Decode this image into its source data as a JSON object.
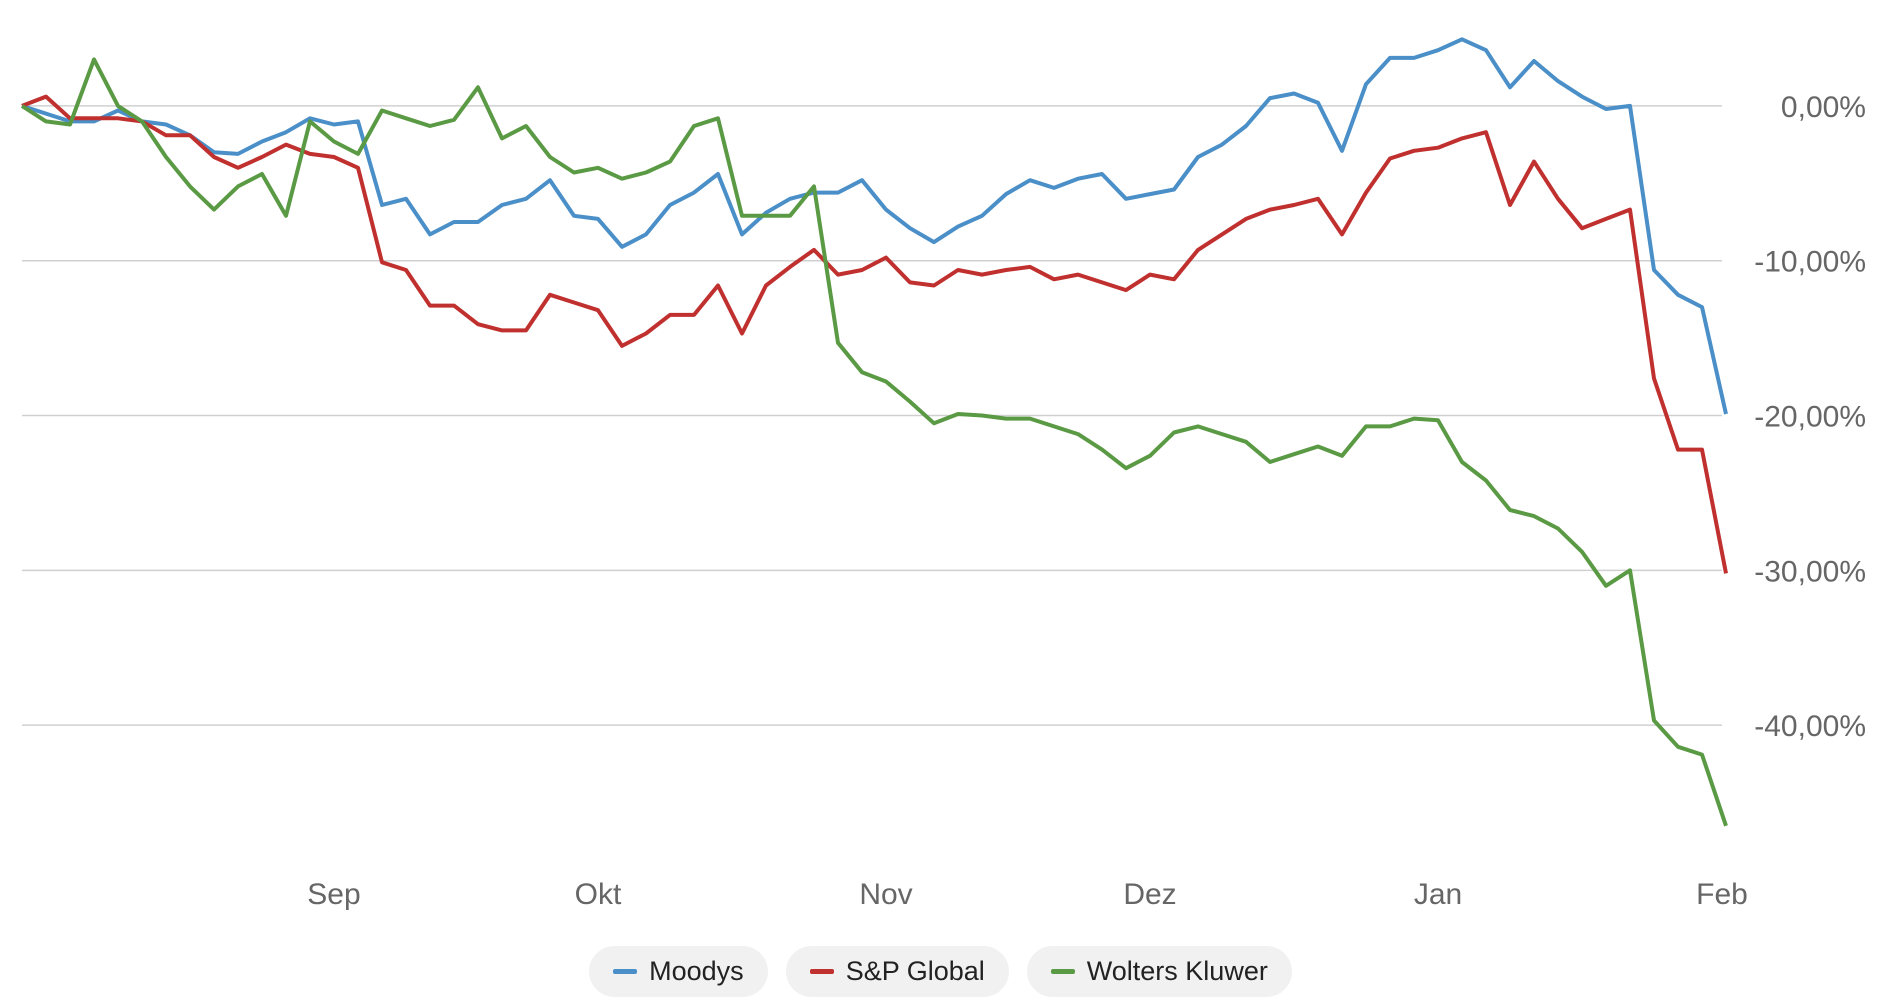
{
  "chart_data": {
    "type": "line",
    "categories": [
      null,
      null,
      null,
      null,
      null,
      null,
      null,
      null,
      null,
      null,
      null,
      null,
      null,
      "Sep",
      null,
      null,
      null,
      null,
      null,
      null,
      null,
      null,
      null,
      null,
      "Okt",
      null,
      null,
      null,
      null,
      null,
      null,
      null,
      null,
      null,
      null,
      null,
      "Nov",
      null,
      null,
      null,
      null,
      null,
      null,
      null,
      null,
      null,
      null,
      "Dez",
      null,
      null,
      null,
      null,
      null,
      null,
      null,
      null,
      null,
      null,
      null,
      "Jan",
      null,
      null,
      null,
      null,
      null,
      null,
      null,
      null,
      null,
      null,
      null,
      "Feb"
    ],
    "series": [
      {
        "name": "Moodys",
        "color": "#4a8fc8",
        "values": [
          0,
          -0.5,
          -1,
          -1,
          -0.3,
          -1,
          -1.2,
          -1.9,
          -3,
          -3.1,
          -2.3,
          -1.7,
          -0.8,
          -1.2,
          -1,
          -6.4,
          -6,
          -8.3,
          -7.5,
          -7.5,
          -6.4,
          -6,
          -4.8,
          -7.1,
          -7.3,
          -9.1,
          -8.3,
          -6.4,
          -5.6,
          -4.4,
          -8.3,
          -6.9,
          -6,
          -5.6,
          -5.6,
          -4.8,
          -6.7,
          -7.9,
          -8.8,
          -7.8,
          -7.1,
          -5.7,
          -4.8,
          -5.3,
          -4.7,
          -4.4,
          -6,
          -5.7,
          -5.4,
          -3.3,
          -2.5,
          -1.3,
          0.5,
          0.8,
          0.2,
          -2.9,
          1.4,
          3.1,
          3.1,
          3.6,
          4.3,
          3.6,
          1.2,
          2.9,
          1.6,
          0.6,
          -0.2,
          0,
          -10.6,
          -12.2,
          -13,
          -19.9
        ]
      },
      {
        "name": "S&P Global",
        "color": "#c0302e",
        "values": [
          0,
          0.6,
          -0.8,
          -0.8,
          -0.8,
          -1,
          -1.9,
          -1.9,
          -3.3,
          -4,
          -3.3,
          -2.5,
          -3.1,
          -3.3,
          -4,
          -10.1,
          -10.6,
          -12.9,
          -12.9,
          -14.1,
          -14.5,
          -14.5,
          -12.2,
          -12.7,
          -13.2,
          -15.5,
          -14.7,
          -13.5,
          -13.5,
          -11.6,
          -14.7,
          -11.6,
          -10.4,
          -9.3,
          -10.9,
          -10.6,
          -9.8,
          -11.4,
          -11.6,
          -10.6,
          -10.9,
          -10.6,
          -10.4,
          -11.2,
          -10.9,
          -11.4,
          -11.9,
          -10.9,
          -11.2,
          -9.3,
          -8.3,
          -7.3,
          -6.7,
          -6.4,
          -6,
          -8.3,
          -5.6,
          -3.4,
          -2.9,
          -2.7,
          -2.1,
          -1.7,
          -6.4,
          -3.6,
          -6,
          -7.9,
          -7.3,
          -6.7,
          -17.6,
          -22.2,
          -22.2,
          -30.2
        ]
      },
      {
        "name": "Wolters Kluwer",
        "color": "#5b9a44",
        "values": [
          0,
          -1,
          -1.2,
          3,
          0,
          -1,
          -3.3,
          -5.2,
          -6.7,
          -5.2,
          -4.4,
          -7.1,
          -1,
          -2.3,
          -3.1,
          -0.3,
          -0.8,
          -1.3,
          -0.9,
          1.2,
          -2.1,
          -1.3,
          -3.3,
          -4.3,
          -4,
          -4.7,
          -4.3,
          -3.6,
          -1.3,
          -0.8,
          -7.1,
          -7.1,
          -7.1,
          -5.2,
          -15.3,
          -17.2,
          -17.8,
          -19.1,
          -20.5,
          -19.9,
          -20,
          -20.2,
          -20.2,
          -20.7,
          -21.2,
          -22.2,
          -23.4,
          -22.6,
          -21.1,
          -20.7,
          -21.2,
          -21.7,
          -23,
          -22.5,
          -22,
          -22.6,
          -20.7,
          -20.7,
          -20.2,
          -20.3,
          -23,
          -24.2,
          -26.1,
          -26.5,
          -27.3,
          -28.8,
          -31,
          -30,
          -39.7,
          -41.4,
          -41.9,
          -46.5
        ]
      }
    ],
    "ylim": [
      -48,
      6
    ],
    "yticks": [
      {
        "value": 0,
        "label": "0,00%"
      },
      {
        "value": -10,
        "label": "-10,00%"
      },
      {
        "value": -20,
        "label": "-20,00%"
      },
      {
        "value": -30,
        "label": "-30,00%"
      },
      {
        "value": -40,
        "label": "-40,00%"
      }
    ],
    "grid": true
  }
}
